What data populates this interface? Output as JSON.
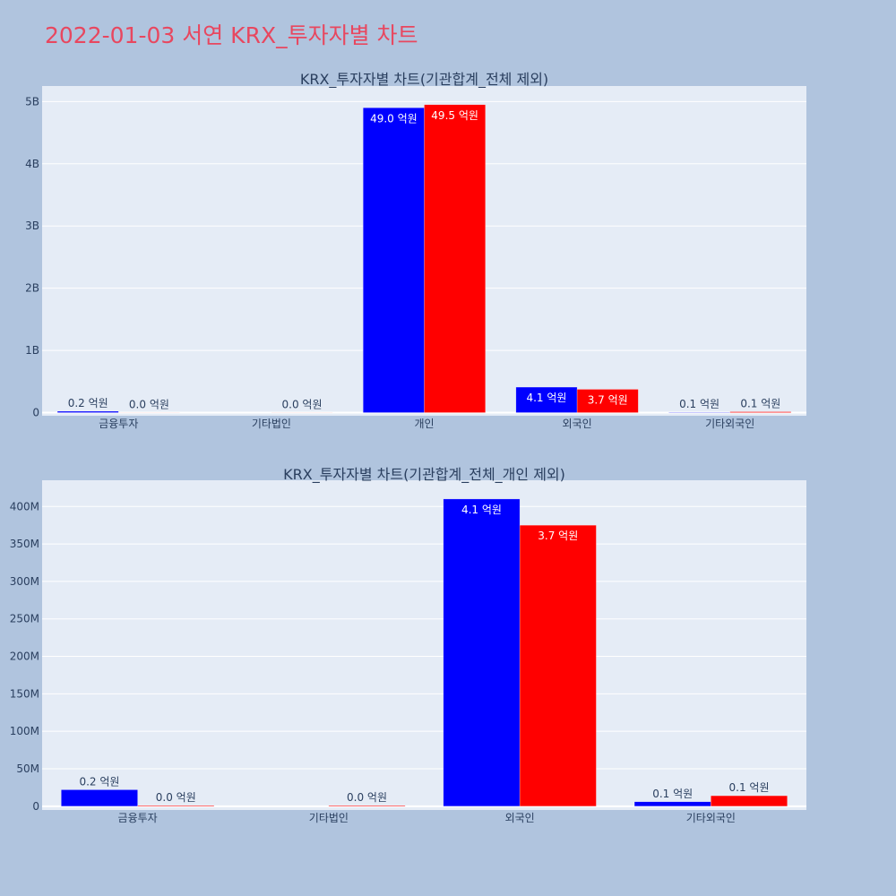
{
  "page_title": "2022-01-03 서연 KRX_투자자별 차트",
  "colors": {
    "series_a": "#0000ff",
    "series_b": "#ff0000",
    "plot_bg": "#e5ecf6",
    "page_bg": "#b0c4de",
    "title": "#e8475f",
    "text": "#2a3f5f"
  },
  "chart_data": [
    {
      "type": "bar",
      "title": "KRX_투자자별 차트(기관합계_전체 제외)",
      "categories": [
        "금융투자",
        "기타법인",
        "개인",
        "외국인",
        "기타외국인"
      ],
      "series": [
        {
          "values": [
            22000000,
            0,
            4900000000,
            410000000,
            6000000
          ],
          "labels": [
            "0.2 억원",
            "",
            "49.0 억원",
            "4.1 억원",
            "0.1 억원"
          ]
        },
        {
          "values": [
            1000000,
            1000000,
            4950000000,
            375000000,
            14000000
          ],
          "labels": [
            "0.0 억원",
            "0.0 억원",
            "49.5 억원",
            "3.7 억원",
            "0.1 억원"
          ]
        }
      ],
      "ylim": [
        -50000000,
        5250000000
      ],
      "yticks": [
        0,
        1000000000,
        2000000000,
        3000000000,
        4000000000,
        5000000000
      ],
      "ytick_labels": [
        "0",
        "1B",
        "2B",
        "3B",
        "4B",
        "5B"
      ],
      "grid": true,
      "xlabel": "",
      "ylabel": ""
    },
    {
      "type": "bar",
      "title": "KRX_투자자별 차트(기관합계_전체_개인 제외)",
      "categories": [
        "금융투자",
        "기타법인",
        "외국인",
        "기타외국인"
      ],
      "series": [
        {
          "values": [
            22000000,
            0,
            410000000,
            6000000
          ],
          "labels": [
            "0.2 억원",
            "",
            "4.1 억원",
            "0.1 억원"
          ]
        },
        {
          "values": [
            1000000,
            1000000,
            375000000,
            14000000
          ],
          "labels": [
            "0.0 억원",
            "0.0 억원",
            "3.7 억원",
            "0.1 억원"
          ]
        }
      ],
      "ylim": [
        -5000000,
        435000000
      ],
      "yticks": [
        0,
        50000000,
        100000000,
        150000000,
        200000000,
        250000000,
        300000000,
        350000000,
        400000000
      ],
      "ytick_labels": [
        "0",
        "50M",
        "100M",
        "150M",
        "200M",
        "250M",
        "300M",
        "350M",
        "400M"
      ],
      "grid": true,
      "xlabel": "",
      "ylabel": ""
    }
  ]
}
